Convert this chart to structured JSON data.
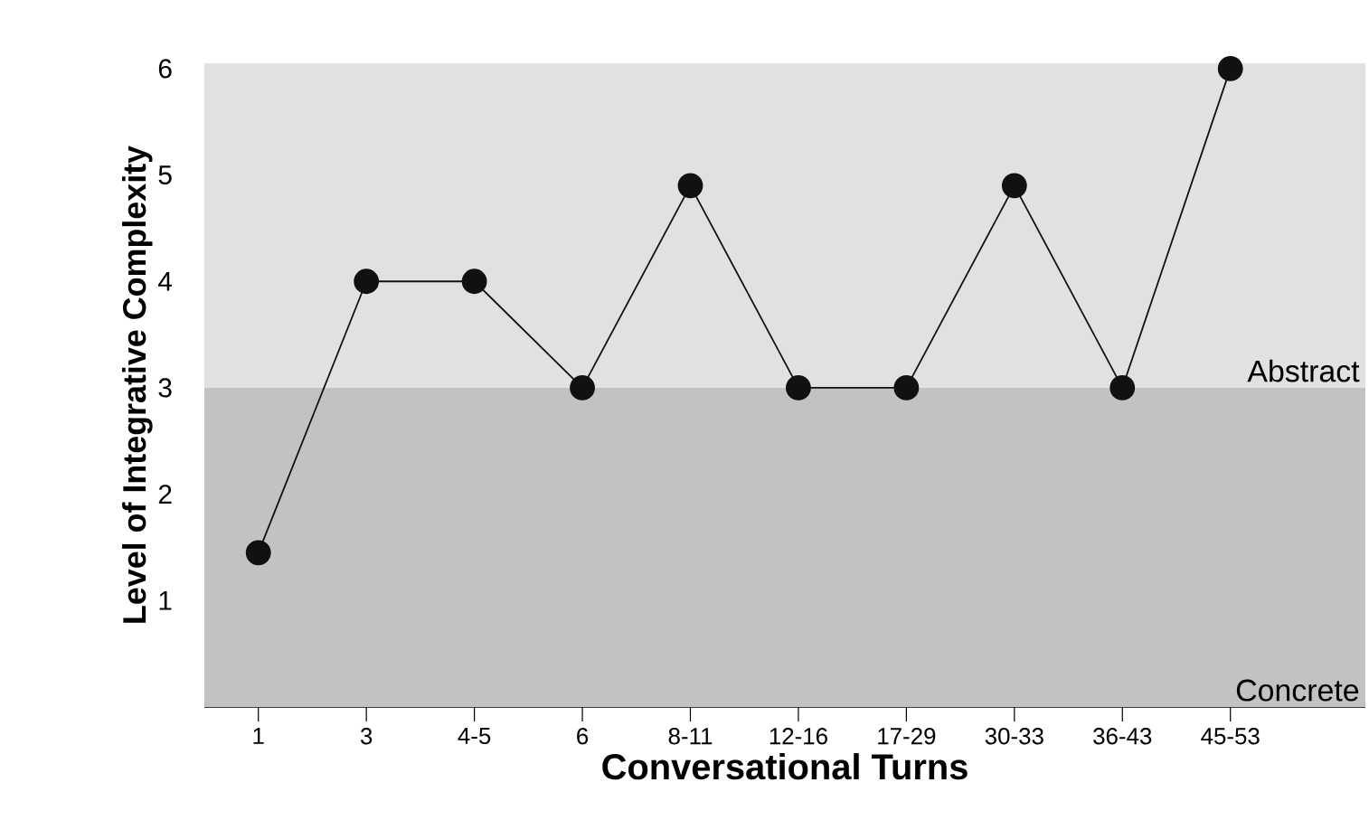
{
  "chart_data": {
    "type": "line",
    "xlabel": "Conversational Turns",
    "ylabel": "Level of Integrative Complexity",
    "categories": [
      "1",
      "3",
      "4-5",
      "6",
      "8-11",
      "12-16",
      "17-29",
      "30-33",
      "36-43",
      "45-53"
    ],
    "series": [
      {
        "color": "#111111",
        "values": [
          1.45,
          4,
          4,
          3,
          4.9,
          3,
          3,
          4.9,
          3,
          6
        ]
      }
    ],
    "ylim": [
      0,
      6.05
    ],
    "yticks": [
      1,
      2,
      3,
      4,
      5,
      6
    ],
    "marker": "circle",
    "line_style": "solid",
    "bands": [
      {
        "axis": "y",
        "from": 0,
        "to": 3,
        "label": "Concrete",
        "color": "#c2c2c2"
      },
      {
        "axis": "y",
        "from": 3,
        "to": 6.05,
        "label": "Abstract",
        "color": "#e1e1e1"
      }
    ]
  }
}
